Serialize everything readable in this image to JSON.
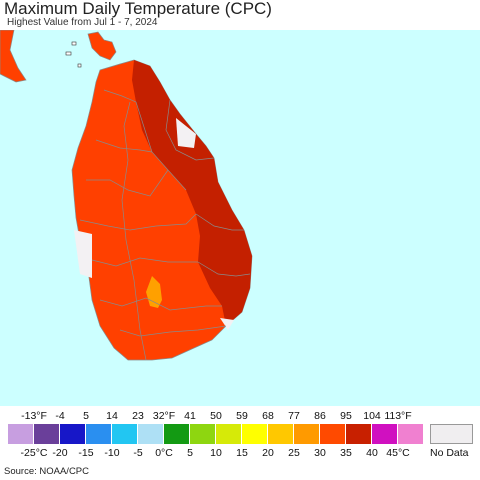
{
  "title": "Maximum Daily Temperature (CPC)",
  "subtitle": "Highest Value from Jul 1 - 7, 2024",
  "legend": {
    "fahrenheit_ticks": [
      "-13°F",
      "-4",
      "5",
      "14",
      "23",
      "32°F",
      "41",
      "50",
      "59",
      "68",
      "77",
      "86",
      "95",
      "104",
      "113°F"
    ],
    "celsius_ticks": [
      "-25°C",
      "-20",
      "-15",
      "-10",
      "-5",
      "0°C",
      "5",
      "10",
      "15",
      "20",
      "25",
      "30",
      "35",
      "40",
      "45°C"
    ],
    "colors": [
      "#c79ee0",
      "#6a3f9a",
      "#1717c8",
      "#2a8ff0",
      "#22c6f2",
      "#aee0f5",
      "#139a13",
      "#8ed610",
      "#d6ea08",
      "#ffff00",
      "#ffc800",
      "#ff9a00",
      "#ff4a00",
      "#c82000",
      "#d010c0",
      "#f080d0"
    ],
    "no_data_label": "No Data",
    "no_data_color": "#f0eef0"
  },
  "map_colors": {
    "sea": "#ccffff",
    "land_30_35": "#ff4000",
    "land_35_40": "#c42000",
    "land_25_30": "#ffa000",
    "no_data": "#f3f1f3",
    "boundary": "#8a8a8a"
  },
  "source": "Source: NOAA/CPC"
}
